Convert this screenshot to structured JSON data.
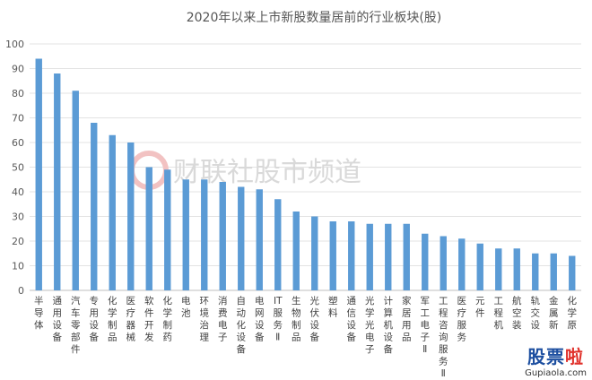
{
  "chart_data": {
    "type": "bar",
    "title": "2020年以来上市新股数量居前的行业板块(股)",
    "xlabel": "",
    "ylabel": "",
    "ylim": [
      0,
      100
    ],
    "yticks": [
      0,
      10,
      20,
      30,
      40,
      50,
      60,
      70,
      80,
      90,
      100
    ],
    "grid": true,
    "bar_color": "#5b9bd5",
    "categories": [
      "半导体",
      "通用设备",
      "汽车零部件",
      "专用设备",
      "化学制品",
      "医疗器械",
      "软件开发",
      "化学制药",
      "电池",
      "环境治理",
      "消费电子",
      "自动化设备",
      "电网设备",
      "IT服务Ⅱ",
      "生物制品",
      "光伏设备",
      "塑料",
      "通信设备",
      "光学光电子",
      "计算机设备",
      "家居用品",
      "军工电子Ⅱ",
      "工程咨询服务Ⅱ",
      "医疗服务",
      "元件",
      "工程机",
      "航空装",
      "轨交设",
      "金属新",
      "化学原"
    ],
    "values": [
      94,
      88,
      81,
      68,
      63,
      60,
      50,
      49,
      45,
      45,
      44,
      42,
      41,
      37,
      32,
      30,
      28,
      28,
      27,
      27,
      27,
      23,
      22,
      21,
      19,
      17,
      17,
      15,
      15,
      14
    ]
  },
  "watermark": {
    "text": "财联社股市频道",
    "color": "#d9d9d9"
  },
  "corner_logo": {
    "text_main": "股票",
    "text_accent": "啦",
    "url": "Gupiaola.com"
  }
}
